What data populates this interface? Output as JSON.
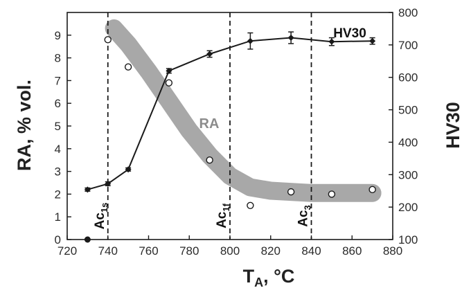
{
  "chart_data": {
    "type": "line",
    "xlabel": "T",
    "xlabel_sub": "A",
    "xlabel_unit": ", °C",
    "ylabel_left": "RA, % vol.",
    "ylabel_right": "HV30",
    "xlim": [
      720,
      880
    ],
    "ylim_left": [
      0,
      10
    ],
    "ylim_right": [
      100,
      800
    ],
    "x_ticks": [
      720,
      740,
      760,
      780,
      800,
      820,
      840,
      860,
      880
    ],
    "y_left_ticks": [
      0,
      1,
      2,
      3,
      4,
      5,
      6,
      7,
      8,
      9
    ],
    "y_right_ticks": [
      100,
      200,
      300,
      400,
      500,
      600,
      700,
      800
    ],
    "grid": false,
    "series": [
      {
        "name": "HV30",
        "axis": "right",
        "marker": "filled diamond with error bars",
        "color": "#1a1a1a",
        "x": [
          730,
          740,
          750,
          770,
          790,
          810,
          830,
          850,
          870
        ],
        "y": [
          254,
          272,
          316,
          620,
          672,
          712,
          722,
          710,
          712
        ],
        "yerr": [
          5,
          6,
          5,
          7,
          10,
          25,
          18,
          12,
          10
        ]
      },
      {
        "name": "RA",
        "axis": "left",
        "marker": "open circle",
        "color": "#1a1a1a",
        "x": [
          740,
          750,
          770,
          790,
          810,
          830,
          850,
          870
        ],
        "y": [
          8.8,
          7.6,
          6.9,
          3.5,
          1.5,
          2.1,
          2.0,
          2.2
        ]
      }
    ],
    "extra_points": [
      {
        "x": 730,
        "y": 0,
        "axis": "left",
        "marker": "filled circle"
      }
    ],
    "trend_band": {
      "label": "RA",
      "axis": "left",
      "color": "#a8a8a8",
      "x": [
        743,
        750,
        760,
        770,
        780,
        790,
        800,
        810,
        820,
        840,
        860,
        870
      ],
      "y": [
        9.3,
        8.6,
        7.4,
        6.1,
        4.8,
        3.7,
        2.8,
        2.3,
        2.15,
        2.05,
        2.05,
        2.05
      ]
    },
    "vlines": [
      {
        "x": 740,
        "label": "Ac",
        "sub": "1s"
      },
      {
        "x": 800,
        "label": "Ac",
        "sub": "1f"
      },
      {
        "x": 840,
        "label": "Ac",
        "sub": "3"
      }
    ]
  }
}
